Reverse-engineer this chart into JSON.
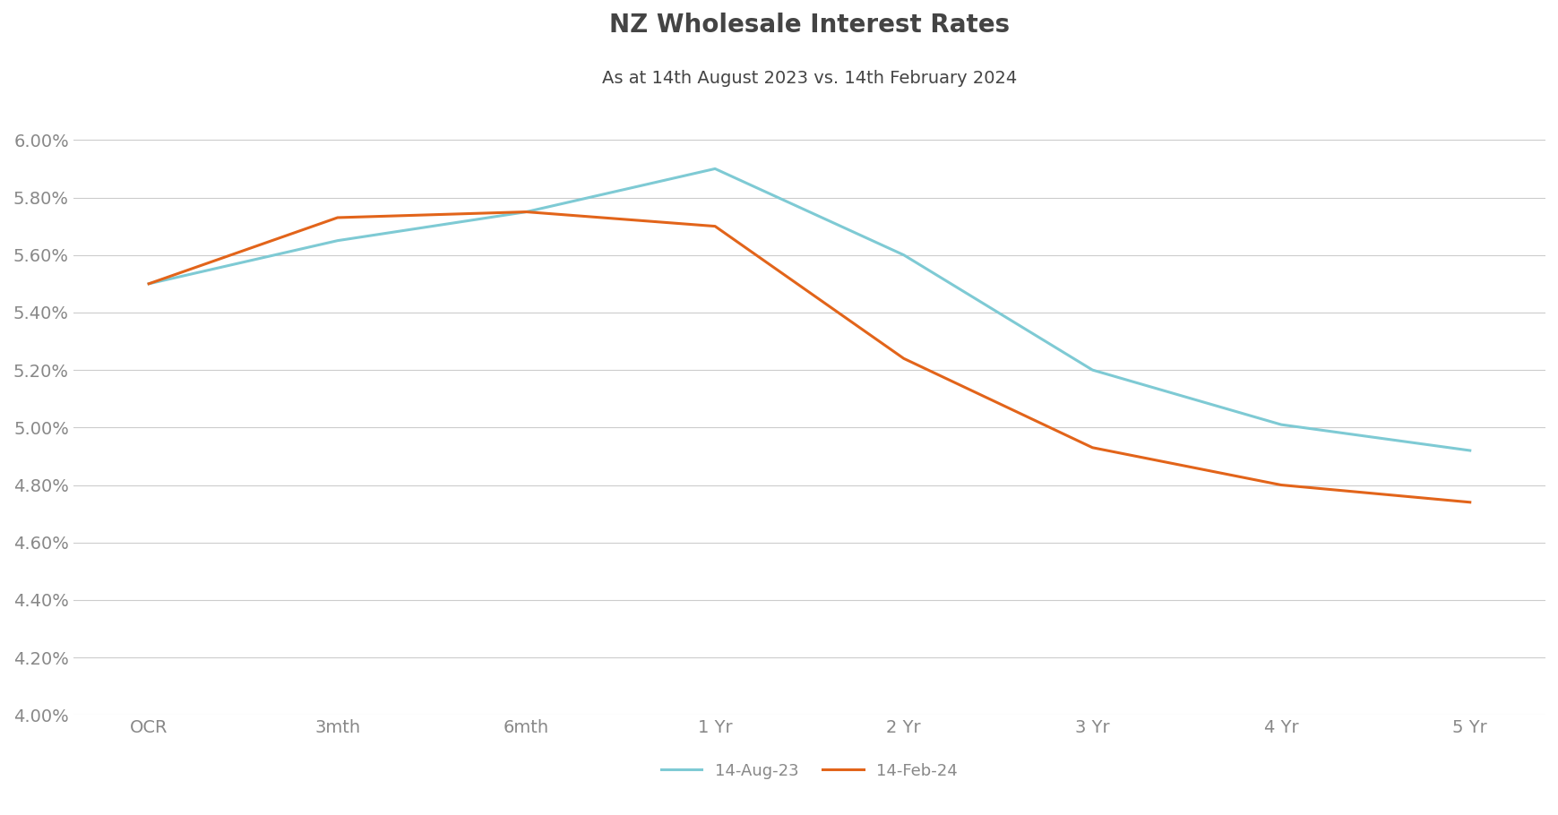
{
  "title": "NZ Wholesale Interest Rates",
  "subtitle": "As at 14th August 2023 vs. 14th February 2024",
  "categories": [
    "OCR",
    "3mth",
    "6mth",
    "1 Yr",
    "2 Yr",
    "3 Yr",
    "4 Yr",
    "5 Yr"
  ],
  "aug23_values": [
    0.055,
    0.0565,
    0.0575,
    0.059,
    0.056,
    0.052,
    0.0501,
    0.0492
  ],
  "feb24_values": [
    0.055,
    0.0573,
    0.0575,
    0.057,
    0.0524,
    0.0493,
    0.048,
    0.0474
  ],
  "aug23_color": "#7ECAD4",
  "feb24_color": "#E2641A",
  "aug23_label": "14-Aug-23",
  "feb24_label": "14-Feb-24",
  "ylim_min": 0.04,
  "ylim_max": 0.061,
  "ytick_step": 0.002,
  "background_color": "#FFFFFF",
  "title_fontsize": 20,
  "subtitle_fontsize": 14,
  "tick_label_fontsize": 14,
  "legend_fontsize": 13,
  "line_width": 2.2,
  "grid_color": "#CCCCCC",
  "title_color": "#444444",
  "subtitle_color": "#555555",
  "tick_color": "#888888"
}
